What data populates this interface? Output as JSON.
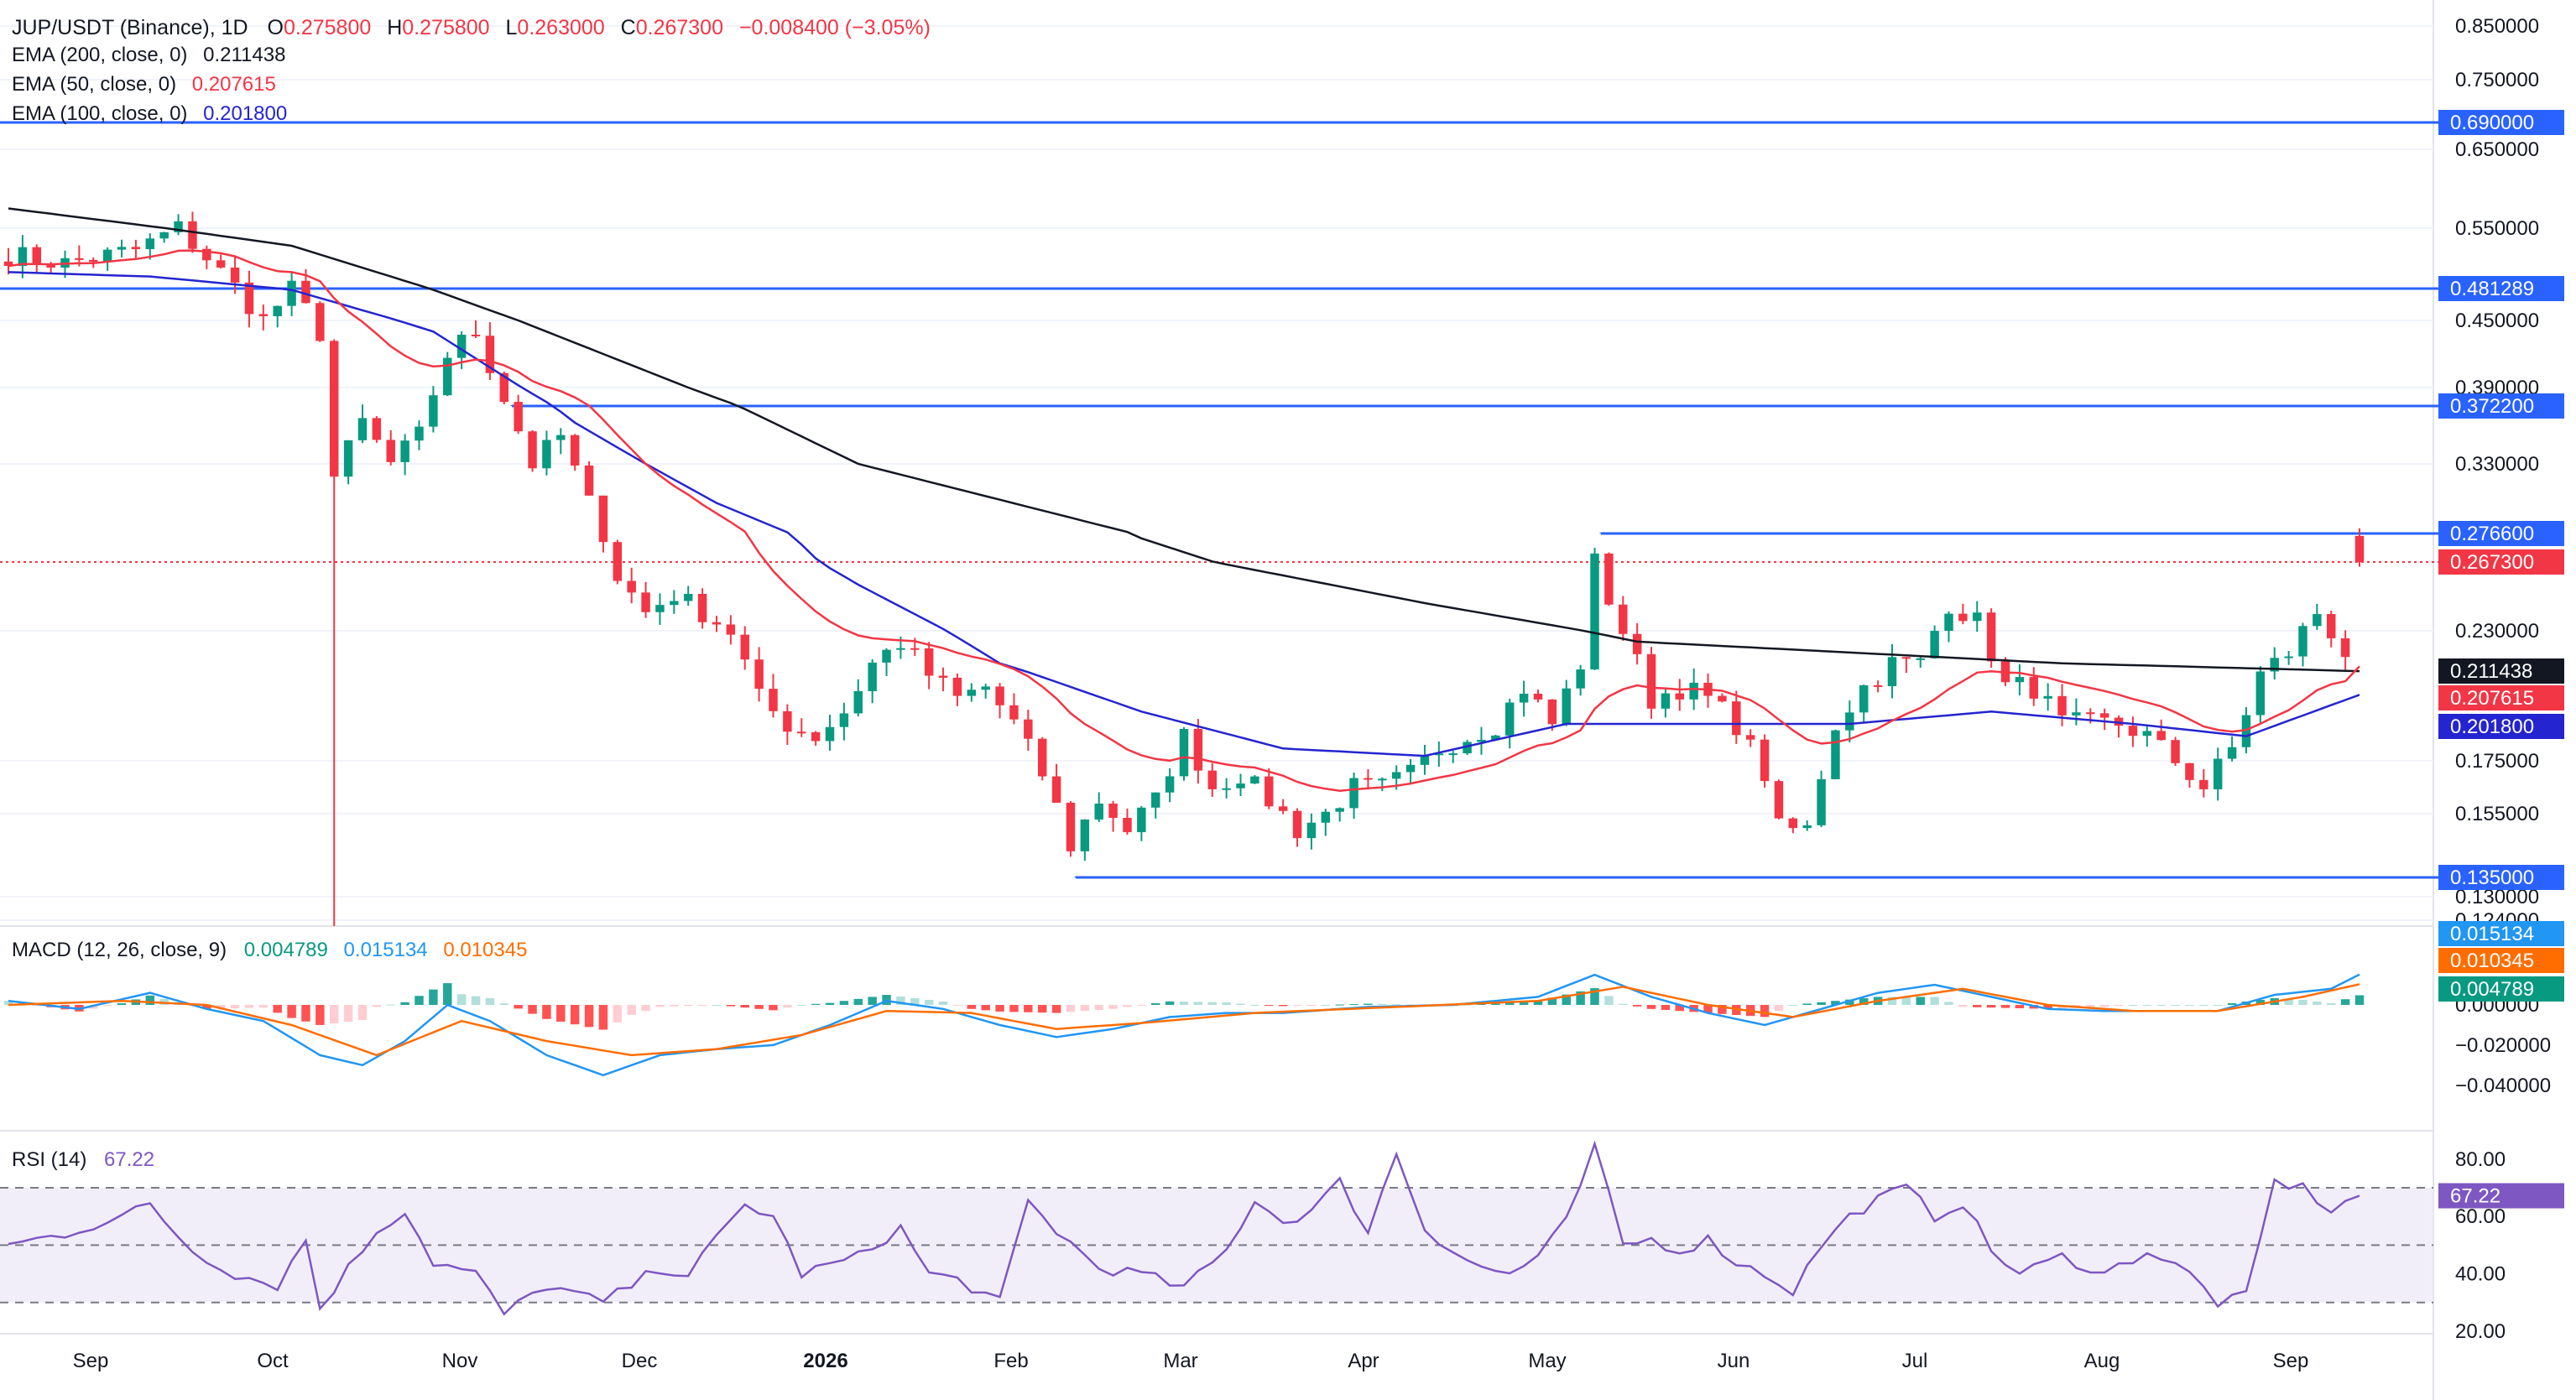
{
  "header": {
    "symbol": "JUP/USDT (Binance), 1D",
    "ohlc": [
      {
        "k": "O",
        "v": "0.275800"
      },
      {
        "k": "H",
        "v": "0.275800"
      },
      {
        "k": "L",
        "v": "0.263000"
      },
      {
        "k": "C",
        "v": "0.267300"
      }
    ],
    "change": "−0.008400 (−3.05%)",
    "change_color": "#f23645"
  },
  "indicators": [
    {
      "label": "EMA (200, close, 0)",
      "value": "0.211438",
      "color": "#131722"
    },
    {
      "label": "EMA (50, close, 0)",
      "value": "0.207615",
      "color": "#f23645"
    },
    {
      "label": "EMA (100, close, 0)",
      "value": "0.201800",
      "color": "#2424d0"
    }
  ],
  "colors": {
    "up": "#089981",
    "down": "#f23645",
    "ema200": "#131722",
    "ema50": "#f23645",
    "ema100": "#2424d0",
    "level": "#2962ff",
    "macd": "#2196f3",
    "signal": "#ff6d00",
    "rsi": "#7e57c2"
  },
  "chart_data": [
    {
      "type": "candlestick",
      "x_labels": [
        "Sep",
        "Oct",
        "Nov",
        "Dec",
        "2026",
        "Feb",
        "Mar",
        "Apr",
        "May",
        "Jun",
        "Jul",
        "Aug",
        "Sep"
      ],
      "y_ticks": [
        "0.850000",
        "0.750000",
        "0.650000",
        "0.550000",
        "0.450000",
        "0.390000",
        "0.330000",
        "0.230000",
        "0.175000",
        "0.155000",
        "0.130000",
        "0.124000"
      ],
      "horizontal_levels": [
        {
          "value": 0.69,
          "label": "0.690000"
        },
        {
          "value": 0.481289,
          "label": "0.481289"
        },
        {
          "value": 0.3722,
          "label": "0.372200"
        },
        {
          "value": 0.2766,
          "label": "0.276600"
        },
        {
          "value": 0.135,
          "label": "0.135000"
        }
      ],
      "last_price": {
        "value": 0.2673,
        "label": "0.267300"
      },
      "ema_tags": [
        {
          "name": "EMA 200",
          "value": 0.211438,
          "label": "0.211438"
        },
        {
          "name": "EMA 50",
          "value": 0.207615,
          "label": "0.207615"
        },
        {
          "name": "EMA 100",
          "value": 0.2018,
          "label": "0.201800"
        }
      ],
      "close_anchors": [
        [
          0,
          0.52
        ],
        [
          4,
          0.51
        ],
        [
          9,
          0.525
        ],
        [
          12,
          0.55
        ],
        [
          15,
          0.5
        ],
        [
          18,
          0.45
        ],
        [
          20,
          0.48
        ],
        [
          22,
          0.44
        ],
        [
          23,
          0.32
        ],
        [
          25,
          0.36
        ],
        [
          27,
          0.33
        ],
        [
          29,
          0.35
        ],
        [
          31,
          0.42
        ],
        [
          33,
          0.44
        ],
        [
          35,
          0.38
        ],
        [
          37,
          0.33
        ],
        [
          39,
          0.35
        ],
        [
          41,
          0.3
        ],
        [
          43,
          0.26
        ],
        [
          45,
          0.24
        ],
        [
          47,
          0.25
        ],
        [
          49,
          0.24
        ],
        [
          51,
          0.23
        ],
        [
          53,
          0.2
        ],
        [
          55,
          0.19
        ],
        [
          57,
          0.185
        ],
        [
          59,
          0.195
        ],
        [
          61,
          0.215
        ],
        [
          63,
          0.225
        ],
        [
          65,
          0.21
        ],
        [
          67,
          0.2
        ],
        [
          69,
          0.205
        ],
        [
          71,
          0.19
        ],
        [
          73,
          0.17
        ],
        [
          75,
          0.145
        ],
        [
          77,
          0.16
        ],
        [
          79,
          0.15
        ],
        [
          81,
          0.16
        ],
        [
          83,
          0.185
        ],
        [
          85,
          0.165
        ],
        [
          87,
          0.17
        ],
        [
          89,
          0.16
        ],
        [
          91,
          0.15
        ],
        [
          93,
          0.155
        ],
        [
          95,
          0.165
        ],
        [
          97,
          0.165
        ],
        [
          99,
          0.17
        ],
        [
          101,
          0.18
        ],
        [
          103,
          0.185
        ],
        [
          105,
          0.19
        ],
        [
          107,
          0.205
        ],
        [
          109,
          0.19
        ],
        [
          111,
          0.215
        ],
        [
          112,
          0.265
        ],
        [
          114,
          0.23
        ],
        [
          116,
          0.2
        ],
        [
          118,
          0.205
        ],
        [
          120,
          0.2
        ],
        [
          122,
          0.19
        ],
        [
          124,
          0.17
        ],
        [
          125,
          0.15
        ],
        [
          127,
          0.15
        ],
        [
          129,
          0.19
        ],
        [
          131,
          0.205
        ],
        [
          133,
          0.215
        ],
        [
          135,
          0.215
        ],
        [
          137,
          0.245
        ],
        [
          139,
          0.235
        ],
        [
          141,
          0.205
        ],
        [
          143,
          0.205
        ],
        [
          145,
          0.19
        ],
        [
          147,
          0.19
        ],
        [
          149,
          0.19
        ],
        [
          151,
          0.185
        ],
        [
          153,
          0.175
        ],
        [
          155,
          0.165
        ],
        [
          157,
          0.18
        ],
        [
          159,
          0.21
        ],
        [
          161,
          0.22
        ],
        [
          163,
          0.24
        ],
        [
          165,
          0.22
        ],
        [
          166,
          0.2673
        ]
      ],
      "ema200_anchors": [
        [
          0,
          0.575
        ],
        [
          20,
          0.53
        ],
        [
          40,
          0.43
        ],
        [
          60,
          0.33
        ],
        [
          80,
          0.275
        ],
        [
          100,
          0.245
        ],
        [
          115,
          0.225
        ],
        [
          130,
          0.22
        ],
        [
          145,
          0.215
        ],
        [
          166,
          0.2114
        ]
      ],
      "ema100_anchors": [
        [
          0,
          0.5
        ],
        [
          10,
          0.495
        ],
        [
          20,
          0.48
        ],
        [
          30,
          0.44
        ],
        [
          40,
          0.36
        ],
        [
          50,
          0.3
        ],
        [
          60,
          0.255
        ],
        [
          70,
          0.215
        ],
        [
          80,
          0.195
        ],
        [
          90,
          0.18
        ],
        [
          100,
          0.177
        ],
        [
          110,
          0.19
        ],
        [
          120,
          0.19
        ],
        [
          130,
          0.19
        ],
        [
          140,
          0.195
        ],
        [
          150,
          0.19
        ],
        [
          158,
          0.185
        ],
        [
          166,
          0.2018
        ]
      ]
    },
    {
      "type": "bar",
      "name": "MACD (12, 26, close, 9)",
      "y_ticks": [
        "0.000000",
        "−0.020000",
        "−0.040000"
      ],
      "values_label": {
        "macd": "0.015134",
        "signal": "0.010345",
        "histogram": "0.004789"
      },
      "macd_anchors": [
        [
          0,
          0.002
        ],
        [
          5,
          -0.002
        ],
        [
          10,
          0.006
        ],
        [
          14,
          -0.002
        ],
        [
          18,
          -0.008
        ],
        [
          22,
          -0.025
        ],
        [
          25,
          -0.03
        ],
        [
          28,
          -0.018
        ],
        [
          31,
          0.0
        ],
        [
          34,
          -0.008
        ],
        [
          38,
          -0.025
        ],
        [
          42,
          -0.035
        ],
        [
          46,
          -0.025
        ],
        [
          50,
          -0.022
        ],
        [
          54,
          -0.02
        ],
        [
          58,
          -0.01
        ],
        [
          62,
          0.002
        ],
        [
          66,
          -0.002
        ],
        [
          70,
          -0.01
        ],
        [
          74,
          -0.016
        ],
        [
          78,
          -0.012
        ],
        [
          82,
          -0.006
        ],
        [
          86,
          -0.004
        ],
        [
          90,
          -0.004
        ],
        [
          96,
          -0.001
        ],
        [
          102,
          0.0
        ],
        [
          108,
          0.004
        ],
        [
          112,
          0.015
        ],
        [
          116,
          0.004
        ],
        [
          120,
          -0.004
        ],
        [
          124,
          -0.01
        ],
        [
          128,
          -0.002
        ],
        [
          132,
          0.006
        ],
        [
          136,
          0.01
        ],
        [
          140,
          0.004
        ],
        [
          144,
          -0.002
        ],
        [
          148,
          -0.003
        ],
        [
          152,
          -0.003
        ],
        [
          156,
          -0.003
        ],
        [
          160,
          0.005
        ],
        [
          164,
          0.008
        ],
        [
          166,
          0.0151
        ]
      ],
      "signal_anchors": [
        [
          0,
          0.0
        ],
        [
          8,
          0.002
        ],
        [
          14,
          0.0
        ],
        [
          20,
          -0.01
        ],
        [
          26,
          -0.025
        ],
        [
          32,
          -0.008
        ],
        [
          38,
          -0.018
        ],
        [
          44,
          -0.025
        ],
        [
          50,
          -0.022
        ],
        [
          56,
          -0.015
        ],
        [
          62,
          -0.003
        ],
        [
          68,
          -0.004
        ],
        [
          74,
          -0.012
        ],
        [
          80,
          -0.009
        ],
        [
          88,
          -0.004
        ],
        [
          98,
          -0.001
        ],
        [
          108,
          0.002
        ],
        [
          114,
          0.009
        ],
        [
          120,
          0.0
        ],
        [
          126,
          -0.006
        ],
        [
          132,
          0.002
        ],
        [
          138,
          0.008
        ],
        [
          144,
          0.0
        ],
        [
          150,
          -0.003
        ],
        [
          156,
          -0.003
        ],
        [
          162,
          0.004
        ],
        [
          166,
          0.0103
        ]
      ]
    },
    {
      "type": "line",
      "name": "RSI (14)",
      "value_label": "67.22",
      "y_ticks": [
        "80.00",
        "60.00",
        "40.00",
        "20.00"
      ],
      "bands": [
        70,
        50,
        30
      ],
      "rsi_anchors": [
        [
          0,
          50
        ],
        [
          4,
          54
        ],
        [
          8,
          60
        ],
        [
          10,
          64
        ],
        [
          13,
          48
        ],
        [
          16,
          40
        ],
        [
          19,
          36
        ],
        [
          21,
          52
        ],
        [
          22,
          28
        ],
        [
          24,
          42
        ],
        [
          26,
          55
        ],
        [
          28,
          62
        ],
        [
          30,
          44
        ],
        [
          33,
          40
        ],
        [
          35,
          26
        ],
        [
          38,
          36
        ],
        [
          42,
          30
        ],
        [
          46,
          42
        ],
        [
          48,
          40
        ],
        [
          52,
          64
        ],
        [
          54,
          60
        ],
        [
          56,
          40
        ],
        [
          60,
          46
        ],
        [
          63,
          56
        ],
        [
          65,
          40
        ],
        [
          67,
          38
        ],
        [
          70,
          30
        ],
        [
          72,
          65
        ],
        [
          74,
          55
        ],
        [
          77,
          42
        ],
        [
          80,
          40
        ],
        [
          83,
          35
        ],
        [
          86,
          48
        ],
        [
          88,
          66
        ],
        [
          90,
          58
        ],
        [
          92,
          62
        ],
        [
          94,
          72
        ],
        [
          96,
          55
        ],
        [
          98,
          82
        ],
        [
          100,
          56
        ],
        [
          102,
          48
        ],
        [
          104,
          42
        ],
        [
          106,
          40
        ],
        [
          108,
          46
        ],
        [
          110,
          58
        ],
        [
          112,
          84
        ],
        [
          114,
          50
        ],
        [
          116,
          52
        ],
        [
          118,
          48
        ],
        [
          120,
          52
        ],
        [
          122,
          44
        ],
        [
          124,
          40
        ],
        [
          126,
          34
        ],
        [
          128,
          50
        ],
        [
          130,
          60
        ],
        [
          132,
          66
        ],
        [
          134,
          70
        ],
        [
          136,
          60
        ],
        [
          138,
          65
        ],
        [
          140,
          48
        ],
        [
          142,
          40
        ],
        [
          145,
          46
        ],
        [
          148,
          40
        ],
        [
          151,
          48
        ],
        [
          154,
          40
        ],
        [
          156,
          30
        ],
        [
          158,
          32
        ],
        [
          160,
          72
        ],
        [
          162,
          70
        ],
        [
          164,
          62
        ],
        [
          166,
          67.22
        ]
      ]
    }
  ]
}
